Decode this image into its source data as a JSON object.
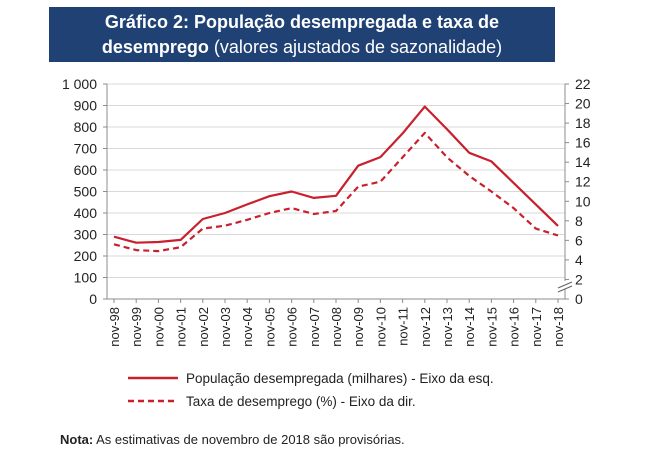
{
  "header": {
    "title_bold": "Gráfico 2: População desempregada e taxa de",
    "subtitle_bold": "desemprego",
    "subtitle_rest": " (valores ajustados de sazonalidade)"
  },
  "note": {
    "label": "Nota:",
    "text": " As estimativas de novembro de 2018 são provisórias."
  },
  "colors": {
    "header_bg": "#1f4173",
    "series": "#c8202c"
  },
  "chart_data": {
    "type": "line",
    "title": "Gráfico 2: População desempregada e taxa de desemprego (valores ajustados de sazonalidade)",
    "x": [
      "nov-98",
      "nov-99",
      "nov-00",
      "nov-01",
      "nov-02",
      "nov-03",
      "nov-04",
      "nov-05",
      "nov-06",
      "nov-07",
      "nov-08",
      "nov-09",
      "nov-10",
      "nov-11",
      "nov-12",
      "nov-13",
      "nov-14",
      "nov-15",
      "nov-16",
      "nov-17",
      "nov-18"
    ],
    "y_left": {
      "ticks": [
        "0",
        "100",
        "200",
        "300",
        "400",
        "500",
        "600",
        "700",
        "800",
        "900",
        "1 000"
      ],
      "ylim": [
        0,
        1000
      ]
    },
    "y_right": {
      "ticks": [
        "0",
        "2",
        "4",
        "6",
        "8",
        "10",
        "12",
        "14",
        "16",
        "18",
        "20",
        "22"
      ],
      "ylim": [
        0,
        22
      ],
      "axis_break": true
    },
    "grid": true,
    "legend_placement": "bottom",
    "series": [
      {
        "name": "População desempregada (milhares) - Eixo da esq.",
        "axis": "left",
        "style": "solid",
        "values": [
          290,
          262,
          265,
          275,
          372,
          400,
          440,
          478,
          500,
          470,
          480,
          620,
          660,
          770,
          895,
          790,
          680,
          640,
          540,
          440,
          340
        ]
      },
      {
        "name": "Taxa de desemprego (%) - Eixo da dir.",
        "axis": "right",
        "style": "dashed",
        "values": [
          5.6,
          5.0,
          4.9,
          5.3,
          7.2,
          7.5,
          8.1,
          8.8,
          9.3,
          8.7,
          9.0,
          11.5,
          12.0,
          14.5,
          17.0,
          14.5,
          12.6,
          11.0,
          9.3,
          7.2,
          6.5
        ]
      }
    ]
  }
}
